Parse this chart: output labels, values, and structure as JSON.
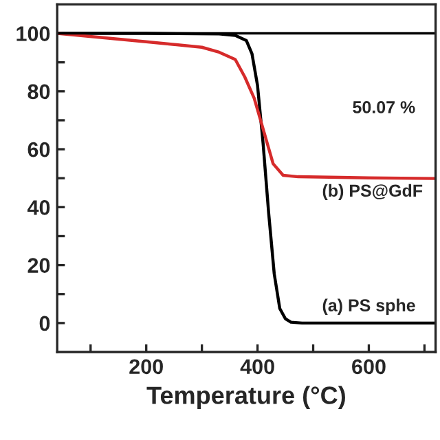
{
  "chart_data": {
    "type": "line",
    "xlabel": "Temperature (°C)",
    "xlim": [
      40,
      720
    ],
    "ylim": [
      -10,
      110
    ],
    "xticks": [
      {
        "value": 100,
        "label": null
      },
      200,
      {
        "value": 300,
        "label": null
      },
      400,
      {
        "value": 500,
        "label": null
      },
      600,
      {
        "value": 700,
        "label": null
      }
    ],
    "yticks": [
      0,
      {
        "value": 10,
        "label": null
      },
      20,
      {
        "value": 30,
        "label": null
      },
      40,
      {
        "value": 50,
        "label": null
      },
      60,
      {
        "value": 70,
        "label": null
      },
      80,
      {
        "value": 90,
        "label": null
      },
      100
    ],
    "grid": false,
    "legend": false,
    "marker": "none",
    "line_style": "solid",
    "ref_lines": [
      {
        "axis": "y",
        "value": 100,
        "color": "#000000"
      }
    ],
    "series": [
      {
        "color": "#000000",
        "x": [
          40,
          200,
          331,
          360,
          380,
          390,
          400,
          410,
          420,
          430,
          440,
          450,
          460,
          480,
          720
        ],
        "values": [
          100,
          100,
          99.8,
          99.3,
          97.5,
          93,
          82,
          62,
          38,
          17,
          5,
          1.5,
          0.3,
          0,
          0
        ]
      },
      {
        "color": "#d62b2b",
        "x": [
          40,
          200,
          300,
          331,
          360,
          377,
          394,
          412,
          428,
          446,
          473,
          600,
          718
        ],
        "values": [
          100,
          97.1,
          95.2,
          93.5,
          91,
          85,
          77.6,
          65.7,
          55,
          51,
          50.5,
          50.1,
          49.9
        ]
      }
    ],
    "annotations": [
      "50.07 %",
      "(b) PS@GdF",
      "(a) PS sphe"
    ]
  }
}
